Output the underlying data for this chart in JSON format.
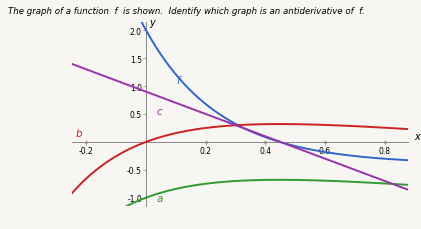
{
  "title_text": "The graph of a function  f  is shown.  Identify which graph is an antiderivative of  f.",
  "xlim": [
    -0.25,
    0.88
  ],
  "ylim": [
    -1.15,
    2.15
  ],
  "xticks": [
    -0.2,
    0.2,
    0.4,
    0.6,
    0.8
  ],
  "yticks": [
    -1.0,
    -0.5,
    0.5,
    1.0,
    1.5,
    2.0
  ],
  "xlabel": "x",
  "ylabel": "y",
  "background_color": "#f7f6f2",
  "curve_f_color": "#3366cc",
  "curve_a_color": "#339933",
  "curve_b_color": "#cc2222",
  "curve_c_color": "#9933aa"
}
